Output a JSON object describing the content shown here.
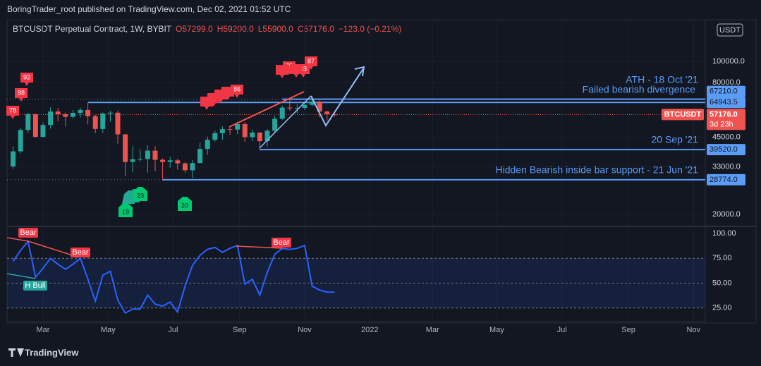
{
  "header": "BoringTrader_root published on TradingView.com, Dec 02, 2021 01:52 UTC",
  "footer": "TradingView",
  "chart_data": [
    {
      "type": "candlestick",
      "title": "BTCUSDT Perpetual Contract, 1W, BYBIT",
      "legend_values": [
        "O57299.0",
        "H59200.0",
        "L55900.0",
        "C57176.0",
        "−123.0 (−0.21%)"
      ],
      "currency": "USDT",
      "categories": [
        null,
        null,
        null,
        null,
        null,
        null,
        null,
        null,
        null,
        null,
        null,
        null,
        null,
        null,
        null,
        null,
        null,
        null,
        null,
        null,
        null,
        null,
        null,
        null,
        null,
        null,
        null,
        null,
        null,
        null,
        null,
        null,
        null,
        null,
        null,
        null,
        null,
        null,
        null,
        null,
        null,
        null,
        null,
        null
      ],
      "open": [
        33100,
        38800,
        48600,
        57400,
        45200,
        51200,
        59000,
        57300,
        55800,
        58200,
        60000,
        56200,
        49100,
        57800,
        58300,
        46400,
        34700,
        35700,
        35800,
        39100,
        35500,
        34700,
        35300,
        34200,
        31800,
        34300,
        39800,
        43800,
        47000,
        49000,
        48800,
        51700,
        45100,
        47300,
        43200,
        48200,
        54700,
        61500,
        61000,
        61300,
        63300,
        65500,
        59000,
        57299
      ],
      "high": [
        40900,
        49700,
        58300,
        57500,
        52600,
        61700,
        61200,
        58400,
        60000,
        61500,
        64900,
        57000,
        58400,
        59500,
        59600,
        46600,
        40900,
        39500,
        41300,
        41000,
        36000,
        36700,
        35900,
        34600,
        35400,
        42600,
        45300,
        48100,
        50500,
        50500,
        52900,
        52900,
        48800,
        47400,
        49000,
        56500,
        62900,
        67000,
        63700,
        64300,
        69000,
        66300,
        59500,
        59200
      ],
      "low": [
        32300,
        37900,
        47000,
        44900,
        44900,
        49300,
        53200,
        50400,
        54900,
        55400,
        51500,
        47000,
        47000,
        53000,
        42100,
        30000,
        31100,
        34800,
        31000,
        31500,
        28800,
        32700,
        32000,
        31000,
        29300,
        34300,
        37300,
        43000,
        43900,
        46200,
        46500,
        42800,
        43300,
        39600,
        40800,
        47100,
        54000,
        59500,
        58000,
        60000,
        62300,
        55600,
        53500,
        55900
      ],
      "close": [
        38800,
        48600,
        57400,
        45200,
        51200,
        59000,
        57300,
        55800,
        58200,
        60000,
        56200,
        49100,
        57800,
        58300,
        46400,
        34700,
        35700,
        35800,
        39100,
        35500,
        34700,
        35300,
        34200,
        31800,
        34300,
        39800,
        43800,
        47000,
        49000,
        48800,
        51700,
        45100,
        47300,
        43200,
        48200,
        54700,
        61500,
        61000,
        61300,
        63300,
        65500,
        59000,
        57300,
        57176
      ],
      "up_color": "#26a69a",
      "down_color": "#ef5350",
      "xlim": [
        -0.81,
        92.58
      ],
      "xticks": [
        {
          "value": 4,
          "label": "Mar"
        },
        {
          "value": 12.7,
          "label": "May"
        },
        {
          "value": 21.4,
          "label": "Jul"
        },
        {
          "value": 30.3,
          "label": "Sep"
        },
        {
          "value": 39,
          "label": "Nov"
        },
        {
          "value": 47.7,
          "label": "2022"
        },
        {
          "value": 56.1,
          "label": "Mar"
        },
        {
          "value": 64.7,
          "label": "May"
        },
        {
          "value": 73.4,
          "label": "Jul"
        },
        {
          "value": 82.3,
          "label": "Sep"
        },
        {
          "value": 91,
          "label": "Nov"
        }
      ],
      "ylim": [
        17750,
        155000
      ],
      "log_scale": true,
      "yticks": [
        {
          "value": 100000,
          "label": "100000.0"
        },
        {
          "value": 80000,
          "label": "80000.0"
        },
        {
          "value": 45000,
          "label": "45000.0"
        },
        {
          "value": 33000,
          "label": "33000.0"
        },
        {
          "value": 20000,
          "label": "20000.0"
        }
      ],
      "levels": [
        {
          "value": 67210,
          "label": "67210.0"
        },
        {
          "value": 64943.5,
          "label": "64943.5"
        },
        {
          "value": 39520,
          "label": "39520.0"
        },
        {
          "value": 28774,
          "label": "28774.0"
        }
      ],
      "last_price": {
        "name": "BTCUSDT",
        "value": 57176,
        "label": "57176.0",
        "countdown": "3d 23h"
      },
      "annotations": [
        "ATH - 18 Oct '21",
        "Failed bearish divergence",
        "20 Sep '21",
        "Hidden Bearish inside bar support - 21 Jun '21"
      ],
      "td_counts_red": [
        "78",
        "88",
        "92",
        "86",
        "79",
        "83",
        "87"
      ],
      "td_counts_green": [
        "19",
        "23",
        "20"
      ],
      "grid": true
    },
    {
      "type": "line",
      "values": [
        72,
        83,
        92,
        56,
        65,
        75,
        69,
        64,
        69,
        75,
        54,
        32,
        58,
        62,
        33,
        20,
        24,
        24,
        38,
        29,
        27,
        31,
        21,
        47,
        68,
        78,
        84,
        86,
        81,
        85,
        88,
        49,
        54,
        38,
        61,
        79,
        85,
        84,
        85,
        88,
        47,
        43,
        41,
        41
      ],
      "color": "#2962ff",
      "ylim": [
        12.1,
        106.4
      ],
      "yticks": [
        {
          "value": 100,
          "label": "100.00"
        },
        {
          "value": 75,
          "label": "75.00"
        },
        {
          "value": 50,
          "label": "50.00"
        },
        {
          "value": 25,
          "label": "25.00"
        }
      ],
      "band": [
        25,
        75
      ],
      "signals": [
        "Bear",
        "Bear",
        "Bear",
        "H Bull"
      ]
    }
  ]
}
